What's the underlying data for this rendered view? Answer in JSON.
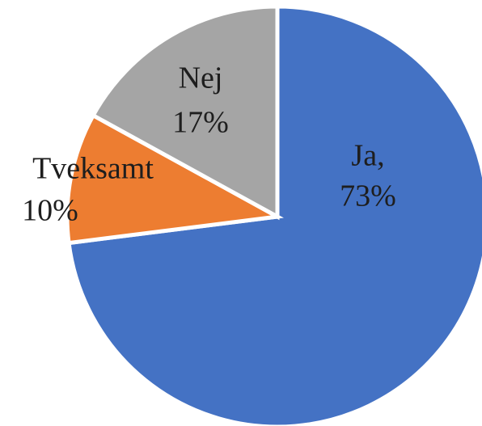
{
  "chart_data": {
    "type": "pie",
    "categories": [
      "Ja,",
      "Tveksamt",
      "Nej"
    ],
    "values": [
      73,
      10,
      17
    ],
    "value_labels": [
      "73%",
      "10%",
      "17%"
    ],
    "colors": [
      "#4472c4",
      "#ed7d31",
      "#a5a5a5"
    ]
  }
}
